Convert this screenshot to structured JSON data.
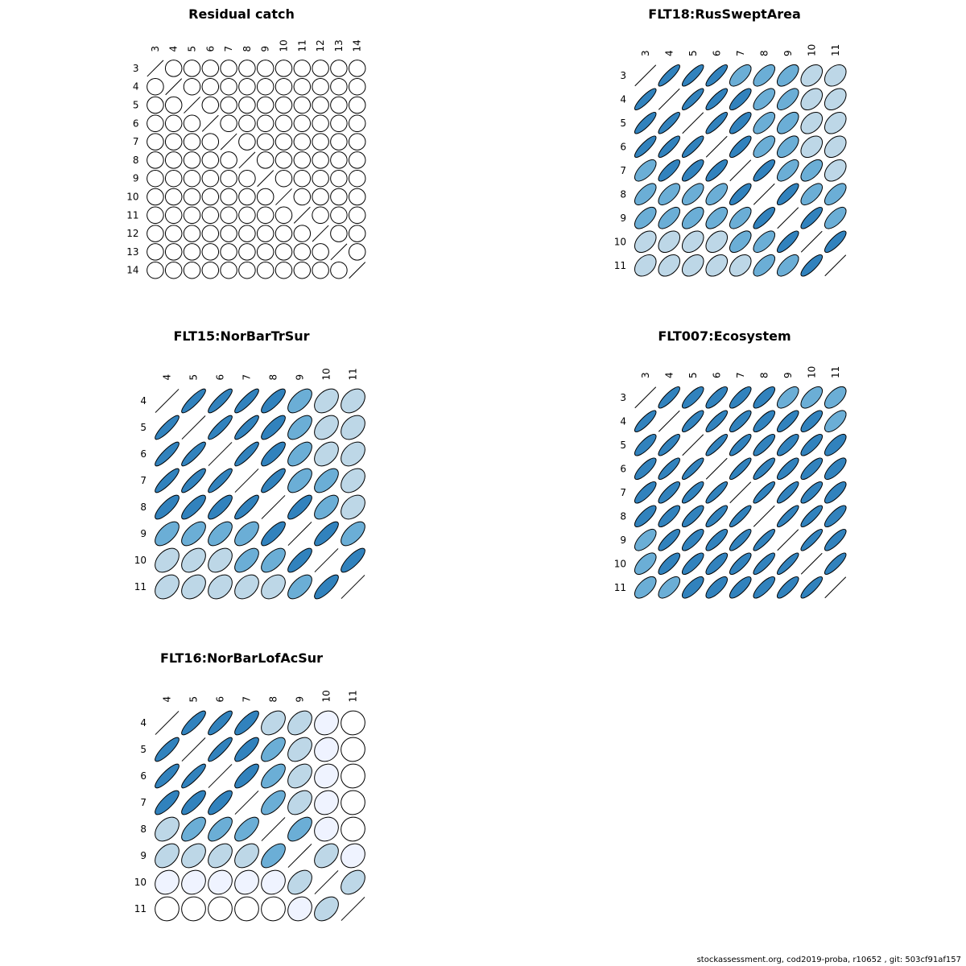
{
  "colors": {
    "stroke": "#000000",
    "palette_by_level": [
      "#ffffff",
      "#eff3ff",
      "#bdd7e7",
      "#6baed6",
      "#3182bd"
    ]
  },
  "footer": "stockassessment.org, cod2019-proba, r10652 , git: 503cf91af157",
  "chart_data": [
    {
      "type": "correlation-ellipse-matrix",
      "title": "Residual catch",
      "labels": [
        "3",
        "4",
        "5",
        "6",
        "7",
        "8",
        "9",
        "10",
        "11",
        "12",
        "13",
        "14"
      ],
      "values": [
        [
          1,
          0,
          0,
          0,
          0,
          0,
          0,
          0,
          0,
          0,
          0,
          0
        ],
        [
          0,
          1,
          0,
          0,
          0,
          0,
          0,
          0,
          0,
          0,
          0,
          0
        ],
        [
          0,
          0,
          1,
          0,
          0,
          0,
          0,
          0,
          0,
          0,
          0,
          0
        ],
        [
          0,
          0,
          0,
          1,
          0,
          0,
          0,
          0,
          0,
          0,
          0,
          0
        ],
        [
          0,
          0,
          0,
          0,
          1,
          0,
          0,
          0,
          0,
          0,
          0,
          0
        ],
        [
          0,
          0,
          0,
          0,
          0,
          1,
          0,
          0,
          0,
          0,
          0,
          0
        ],
        [
          0,
          0,
          0,
          0,
          0,
          0,
          1,
          0,
          0,
          0,
          0,
          0
        ],
        [
          0,
          0,
          0,
          0,
          0,
          0,
          0,
          1,
          0,
          0,
          0,
          0
        ],
        [
          0,
          0,
          0,
          0,
          0,
          0,
          0,
          0,
          1,
          0,
          0,
          0
        ],
        [
          0,
          0,
          0,
          0,
          0,
          0,
          0,
          0,
          0,
          1,
          0,
          0
        ],
        [
          0,
          0,
          0,
          0,
          0,
          0,
          0,
          0,
          0,
          0,
          1,
          0
        ],
        [
          0,
          0,
          0,
          0,
          0,
          0,
          0,
          0,
          0,
          0,
          0,
          1
        ]
      ]
    },
    {
      "type": "correlation-ellipse-matrix",
      "title": "FLT18:RusSweptArea",
      "labels": [
        "3",
        "4",
        "5",
        "6",
        "7",
        "8",
        "9",
        "10",
        "11"
      ],
      "values": [
        [
          1,
          0.87,
          0.85,
          0.85,
          0.65,
          0.65,
          0.6,
          0.4,
          0.35
        ],
        [
          0.87,
          1,
          0.87,
          0.85,
          0.8,
          0.65,
          0.65,
          0.4,
          0.4
        ],
        [
          0.85,
          0.87,
          1,
          0.87,
          0.8,
          0.65,
          0.6,
          0.4,
          0.4
        ],
        [
          0.85,
          0.85,
          0.87,
          1,
          0.82,
          0.65,
          0.6,
          0.4,
          0.4
        ],
        [
          0.65,
          0.8,
          0.8,
          0.82,
          1,
          0.82,
          0.65,
          0.6,
          0.4
        ],
        [
          0.65,
          0.65,
          0.65,
          0.65,
          0.82,
          1,
          0.82,
          0.65,
          0.65
        ],
        [
          0.6,
          0.65,
          0.6,
          0.6,
          0.65,
          0.82,
          1,
          0.82,
          0.65
        ],
        [
          0.4,
          0.4,
          0.4,
          0.4,
          0.6,
          0.65,
          0.82,
          1,
          0.82
        ],
        [
          0.35,
          0.4,
          0.4,
          0.4,
          0.4,
          0.65,
          0.65,
          0.82,
          1
        ]
      ]
    },
    {
      "type": "correlation-ellipse-matrix",
      "title": "FLT15:NorBarTrSur",
      "labels": [
        "4",
        "5",
        "6",
        "7",
        "8",
        "9",
        "10",
        "11"
      ],
      "values": [
        [
          1,
          0.88,
          0.87,
          0.87,
          0.8,
          0.6,
          0.4,
          0.35
        ],
        [
          0.88,
          1,
          0.88,
          0.87,
          0.8,
          0.6,
          0.4,
          0.35
        ],
        [
          0.87,
          0.88,
          1,
          0.88,
          0.8,
          0.6,
          0.4,
          0.38
        ],
        [
          0.87,
          0.87,
          0.88,
          1,
          0.85,
          0.6,
          0.6,
          0.38
        ],
        [
          0.8,
          0.8,
          0.8,
          0.85,
          1,
          0.8,
          0.6,
          0.38
        ],
        [
          0.6,
          0.6,
          0.6,
          0.6,
          0.8,
          1,
          0.8,
          0.6
        ],
        [
          0.4,
          0.4,
          0.4,
          0.6,
          0.6,
          0.8,
          1,
          0.8
        ],
        [
          0.35,
          0.35,
          0.35,
          0.38,
          0.38,
          0.6,
          0.8,
          1
        ]
      ]
    },
    {
      "type": "correlation-ellipse-matrix",
      "title": "FLT007:Ecosystem",
      "labels": [
        "3",
        "4",
        "5",
        "6",
        "7",
        "8",
        "9",
        "10",
        "11"
      ],
      "values": [
        [
          1,
          0.85,
          0.8,
          0.8,
          0.8,
          0.78,
          0.65,
          0.62,
          0.6
        ],
        [
          0.85,
          1,
          0.85,
          0.85,
          0.82,
          0.8,
          0.82,
          0.78,
          0.65
        ],
        [
          0.8,
          0.85,
          1,
          0.88,
          0.85,
          0.82,
          0.8,
          0.8,
          0.75
        ],
        [
          0.8,
          0.85,
          0.88,
          1,
          0.88,
          0.85,
          0.82,
          0.8,
          0.75
        ],
        [
          0.8,
          0.82,
          0.85,
          0.88,
          1,
          0.88,
          0.85,
          0.82,
          0.78
        ],
        [
          0.78,
          0.8,
          0.82,
          0.85,
          0.88,
          1,
          0.88,
          0.85,
          0.8
        ],
        [
          0.65,
          0.82,
          0.8,
          0.82,
          0.85,
          0.88,
          1,
          0.88,
          0.82
        ],
        [
          0.62,
          0.78,
          0.8,
          0.8,
          0.82,
          0.85,
          0.88,
          1,
          0.85
        ],
        [
          0.6,
          0.65,
          0.75,
          0.75,
          0.78,
          0.8,
          0.82,
          0.85,
          1
        ]
      ]
    },
    {
      "type": "correlation-ellipse-matrix",
      "title": "FLT16:NorBarLofAcSur",
      "labels": [
        "4",
        "5",
        "6",
        "7",
        "8",
        "9",
        "10",
        "11"
      ],
      "values": [
        [
          1,
          0.85,
          0.85,
          0.8,
          0.4,
          0.4,
          0.15,
          0.02
        ],
        [
          0.85,
          1,
          0.88,
          0.8,
          0.65,
          0.4,
          0.15,
          0.02
        ],
        [
          0.85,
          0.88,
          1,
          0.8,
          0.65,
          0.4,
          0.15,
          0.02
        ],
        [
          0.8,
          0.8,
          0.8,
          1,
          0.65,
          0.4,
          0.15,
          0.02
        ],
        [
          0.4,
          0.65,
          0.65,
          0.65,
          1,
          0.6,
          0.15,
          0.03
        ],
        [
          0.4,
          0.4,
          0.4,
          0.4,
          0.6,
          1,
          0.4,
          0.15
        ],
        [
          0.15,
          0.15,
          0.15,
          0.15,
          0.15,
          0.4,
          1,
          0.4
        ],
        [
          0.02,
          0.02,
          0.02,
          0.02,
          0.03,
          0.15,
          0.4,
          1
        ]
      ]
    }
  ]
}
